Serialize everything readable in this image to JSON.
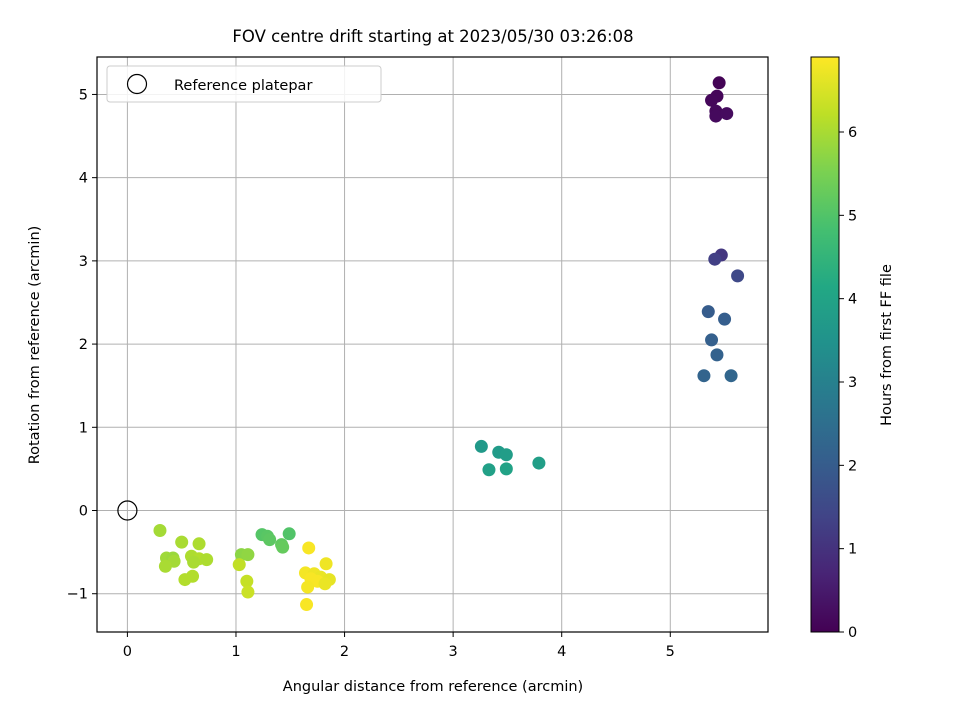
{
  "chart_data": {
    "type": "scatter",
    "title": "FOV centre drift starting at 2023/05/30 03:26:08",
    "xlabel": "Angular distance from reference (arcmin)",
    "ylabel": "Rotation from reference (arcmin)",
    "xlim": [
      -0.28,
      5.9
    ],
    "ylim": [
      -1.46,
      5.45
    ],
    "xticks": [
      0,
      1,
      2,
      3,
      4,
      5
    ],
    "yticks": [
      -1,
      0,
      1,
      2,
      3,
      4,
      5
    ],
    "grid": true,
    "legend": {
      "position": "top-left",
      "entries": [
        "Reference platepar"
      ]
    },
    "reference_point": {
      "x": 0,
      "y": 0,
      "label": "Reference platepar"
    },
    "colorbar": {
      "label": "Hours from first FF file",
      "colormap": "viridis",
      "range": [
        0,
        6.9
      ],
      "ticks": [
        0,
        1,
        2,
        3,
        4,
        5,
        6
      ]
    },
    "points": [
      {
        "x": 5.45,
        "y": 5.14,
        "c": 0.05
      },
      {
        "x": 5.43,
        "y": 4.98,
        "c": 0.1
      },
      {
        "x": 5.38,
        "y": 4.93,
        "c": 0.12
      },
      {
        "x": 5.42,
        "y": 4.8,
        "c": 0.15
      },
      {
        "x": 5.42,
        "y": 4.74,
        "c": 0.18
      },
      {
        "x": 5.52,
        "y": 4.77,
        "c": 0.2
      },
      {
        "x": 5.47,
        "y": 3.07,
        "c": 1.1
      },
      {
        "x": 5.41,
        "y": 3.02,
        "c": 1.3
      },
      {
        "x": 5.62,
        "y": 2.82,
        "c": 1.5
      },
      {
        "x": 5.35,
        "y": 2.39,
        "c": 2.0
      },
      {
        "x": 5.5,
        "y": 2.3,
        "c": 2.05
      },
      {
        "x": 5.38,
        "y": 2.05,
        "c": 2.1
      },
      {
        "x": 5.43,
        "y": 1.87,
        "c": 2.15
      },
      {
        "x": 5.31,
        "y": 1.62,
        "c": 2.2
      },
      {
        "x": 5.56,
        "y": 1.62,
        "c": 2.25
      },
      {
        "x": 3.26,
        "y": 0.77,
        "c": 3.7
      },
      {
        "x": 3.42,
        "y": 0.7,
        "c": 3.75
      },
      {
        "x": 3.49,
        "y": 0.67,
        "c": 3.8
      },
      {
        "x": 3.79,
        "y": 0.57,
        "c": 3.85
      },
      {
        "x": 3.33,
        "y": 0.49,
        "c": 3.9
      },
      {
        "x": 3.49,
        "y": 0.5,
        "c": 3.95
      },
      {
        "x": 1.49,
        "y": -0.28,
        "c": 5.0
      },
      {
        "x": 1.24,
        "y": -0.29,
        "c": 5.05
      },
      {
        "x": 1.29,
        "y": -0.31,
        "c": 5.1
      },
      {
        "x": 1.31,
        "y": -0.35,
        "c": 5.15
      },
      {
        "x": 1.42,
        "y": -0.41,
        "c": 5.2
      },
      {
        "x": 1.43,
        "y": -0.44,
        "c": 5.25
      },
      {
        "x": 1.05,
        "y": -0.53,
        "c": 5.7
      },
      {
        "x": 1.11,
        "y": -0.53,
        "c": 5.75
      },
      {
        "x": 1.03,
        "y": -0.65,
        "c": 6.25
      },
      {
        "x": 1.1,
        "y": -0.85,
        "c": 6.3
      },
      {
        "x": 1.11,
        "y": -0.98,
        "c": 6.35
      },
      {
        "x": 0.3,
        "y": -0.24,
        "c": 5.95
      },
      {
        "x": 0.5,
        "y": -0.38,
        "c": 6.0
      },
      {
        "x": 0.66,
        "y": -0.4,
        "c": 6.05
      },
      {
        "x": 0.36,
        "y": -0.57,
        "c": 5.9
      },
      {
        "x": 0.42,
        "y": -0.57,
        "c": 5.85
      },
      {
        "x": 0.43,
        "y": -0.61,
        "c": 5.95
      },
      {
        "x": 0.35,
        "y": -0.67,
        "c": 6.0
      },
      {
        "x": 0.59,
        "y": -0.55,
        "c": 6.05
      },
      {
        "x": 0.66,
        "y": -0.58,
        "c": 6.1
      },
      {
        "x": 0.73,
        "y": -0.59,
        "c": 6.05
      },
      {
        "x": 0.61,
        "y": -0.62,
        "c": 6.0
      },
      {
        "x": 0.6,
        "y": -0.79,
        "c": 6.1
      },
      {
        "x": 0.53,
        "y": -0.83,
        "c": 6.1
      },
      {
        "x": 1.67,
        "y": -0.45,
        "c": 6.85
      },
      {
        "x": 1.83,
        "y": -0.64,
        "c": 6.75
      },
      {
        "x": 1.64,
        "y": -0.75,
        "c": 6.8
      },
      {
        "x": 1.72,
        "y": -0.76,
        "c": 6.75
      },
      {
        "x": 1.78,
        "y": -0.8,
        "c": 6.7
      },
      {
        "x": 1.69,
        "y": -0.82,
        "c": 6.85
      },
      {
        "x": 1.86,
        "y": -0.83,
        "c": 6.65
      },
      {
        "x": 1.75,
        "y": -0.85,
        "c": 6.85
      },
      {
        "x": 1.82,
        "y": -0.88,
        "c": 6.7
      },
      {
        "x": 1.66,
        "y": -0.92,
        "c": 6.8
      },
      {
        "x": 1.65,
        "y": -1.13,
        "c": 6.85
      }
    ]
  }
}
